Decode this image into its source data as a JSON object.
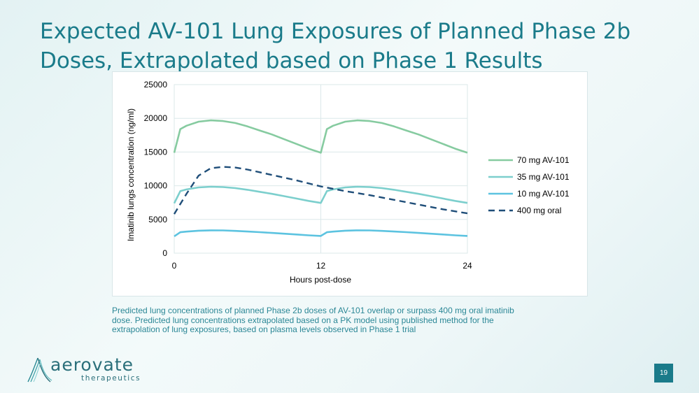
{
  "slide": {
    "title_line1": "Expected AV-101 Lung Exposures of Planned Phase 2b",
    "title_line2": "Doses, Extrapolated based on Phase 1 Results",
    "caption_line1": "Predicted lung concentrations of planned Phase 2b doses of AV-101 overlap or surpass 400 mg oral imatinib",
    "caption_line2": "dose.  Predicted lung concentrations extrapolated based on a PK model using published method for the",
    "caption_line3": "extrapolation of lung exposures, based on plasma levels observed in Phase 1 trial",
    "logo_word": "aerovate",
    "logo_sub": "therapeutics",
    "page_number": "19"
  },
  "chart_data": {
    "type": "line",
    "title": "",
    "xlabel": "Hours post-dose",
    "ylabel": "Imatinib lungs concentration (ng/ml)",
    "xlim": [
      0,
      24
    ],
    "ylim": [
      0,
      25000
    ],
    "xticks": [
      0,
      12,
      24
    ],
    "xtick_labels": [
      "0",
      "12",
      "24"
    ],
    "yticks": [
      0,
      5000,
      10000,
      15000,
      20000,
      25000
    ],
    "ytick_labels": [
      "0",
      "5000",
      "10000",
      "15000",
      "20000",
      "25000"
    ],
    "grid": true,
    "legend_position": "right",
    "series": [
      {
        "name": "70 mg AV-101",
        "color": "#86cba0",
        "dash": false,
        "x": [
          0,
          0.5,
          1,
          2,
          3,
          4,
          5,
          6,
          7,
          8,
          9,
          10,
          11,
          12,
          12.5,
          13,
          14,
          15,
          16,
          17,
          18,
          19,
          20,
          21,
          22,
          23,
          24
        ],
        "y": [
          14900,
          18400,
          18900,
          19500,
          19700,
          19600,
          19300,
          18800,
          18200,
          17600,
          16900,
          16200,
          15500,
          14900,
          18400,
          18900,
          19500,
          19700,
          19600,
          19300,
          18800,
          18200,
          17600,
          16900,
          16200,
          15500,
          14900
        ]
      },
      {
        "name": "35 mg AV-101",
        "color": "#7ccfcd",
        "dash": false,
        "x": [
          0,
          0.5,
          1,
          2,
          3,
          4,
          5,
          6,
          7,
          8,
          9,
          10,
          11,
          12,
          12.5,
          13,
          14,
          15,
          16,
          17,
          18,
          19,
          20,
          21,
          22,
          23,
          24
        ],
        "y": [
          7400,
          9200,
          9450,
          9750,
          9850,
          9800,
          9650,
          9400,
          9100,
          8800,
          8450,
          8100,
          7750,
          7450,
          9200,
          9450,
          9750,
          9850,
          9800,
          9650,
          9400,
          9100,
          8800,
          8450,
          8100,
          7750,
          7450
        ]
      },
      {
        "name": "10 mg AV-101",
        "color": "#5cc3e0",
        "dash": false,
        "x": [
          0,
          0.5,
          1,
          2,
          3,
          4,
          5,
          6,
          7,
          8,
          9,
          10,
          11,
          12,
          12.5,
          13,
          14,
          15,
          16,
          17,
          18,
          19,
          20,
          21,
          22,
          23,
          24
        ],
        "y": [
          2500,
          3100,
          3200,
          3330,
          3380,
          3370,
          3300,
          3210,
          3110,
          3000,
          2880,
          2770,
          2650,
          2550,
          3100,
          3200,
          3330,
          3380,
          3370,
          3300,
          3210,
          3110,
          3000,
          2880,
          2770,
          2650,
          2550
        ]
      },
      {
        "name": "400 mg oral",
        "color": "#1f4e79",
        "dash": true,
        "x": [
          0,
          1,
          2,
          3,
          4,
          5,
          6,
          8,
          10,
          12,
          14,
          16,
          18,
          20,
          22,
          24
        ],
        "y": [
          5800,
          8800,
          11500,
          12600,
          12800,
          12700,
          12400,
          11600,
          10800,
          9900,
          9200,
          8600,
          7900,
          7200,
          6500,
          5900
        ]
      }
    ]
  }
}
